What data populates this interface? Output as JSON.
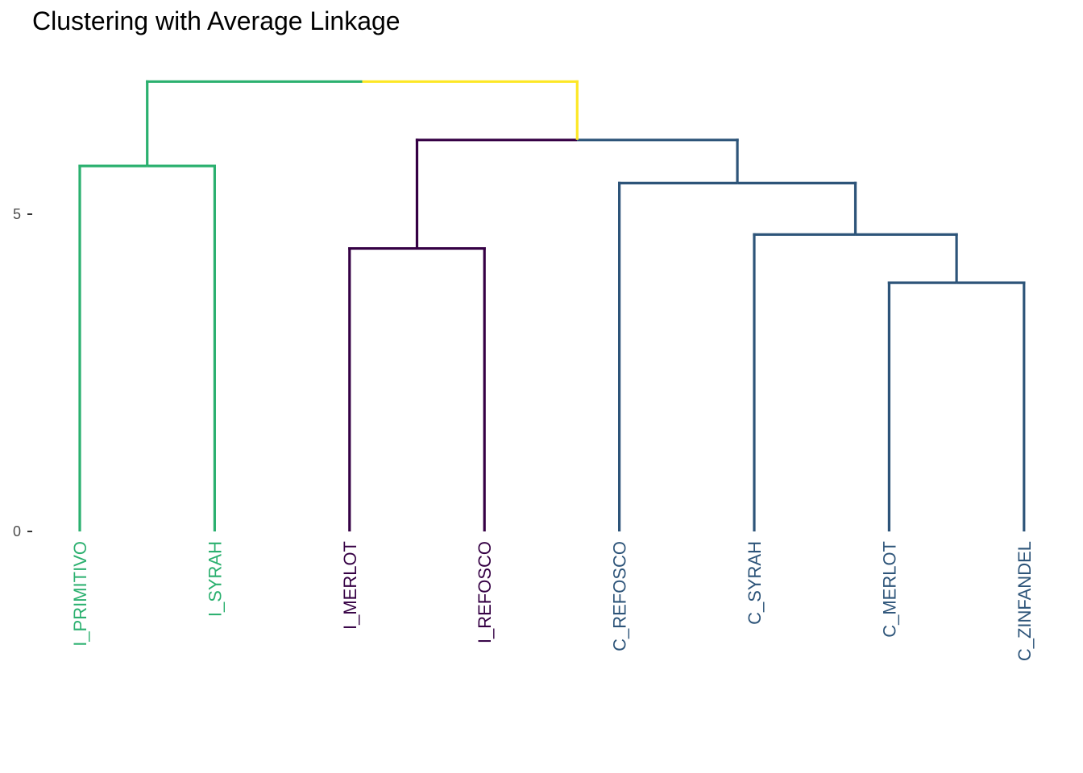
{
  "chart_data": {
    "type": "dendrogram",
    "title": "Clustering with Average Linkage",
    "xlabel": "",
    "ylabel": "",
    "ylim": [
      0,
      7.4
    ],
    "y_ticks": [
      0,
      5
    ],
    "grid": false,
    "legend": "none",
    "leaves": [
      {
        "label": "I_PRIMITIVO",
        "color": "#2BB06F"
      },
      {
        "label": "I_SYRAH",
        "color": "#2BB06F"
      },
      {
        "label": "I_MERLOT",
        "color": "#350044"
      },
      {
        "label": "I_REFOSCO",
        "color": "#350044"
      },
      {
        "label": "C_REFOSCO",
        "color": "#2D5479"
      },
      {
        "label": "C_SYRAH",
        "color": "#2D5479"
      },
      {
        "label": "C_MERLOT",
        "color": "#2D5479"
      },
      {
        "label": "C_ZINFANDEL",
        "color": "#2D5479"
      }
    ],
    "merges": [
      {
        "left": 6,
        "right": 7,
        "height": 3.92,
        "color": "#2D5479"
      },
      {
        "left": 5,
        "right": "m0",
        "height": 4.68,
        "color": "#2D5479"
      },
      {
        "left": 2,
        "right": 3,
        "height": 4.46,
        "color": "#350044"
      },
      {
        "left": 4,
        "right": "m1",
        "height": 5.49,
        "color": "#2D5479"
      },
      {
        "left": 0,
        "right": 1,
        "height": 5.76,
        "color": "#2BB06F"
      },
      {
        "left": "m2",
        "right": "m3",
        "height": 6.17,
        "color_left": "#350044",
        "color_right": "#2D5479"
      },
      {
        "left": "m4",
        "right": "m5",
        "height": 7.09,
        "color_left": "#2BB06F",
        "color_right": "#FDE725"
      }
    ]
  }
}
